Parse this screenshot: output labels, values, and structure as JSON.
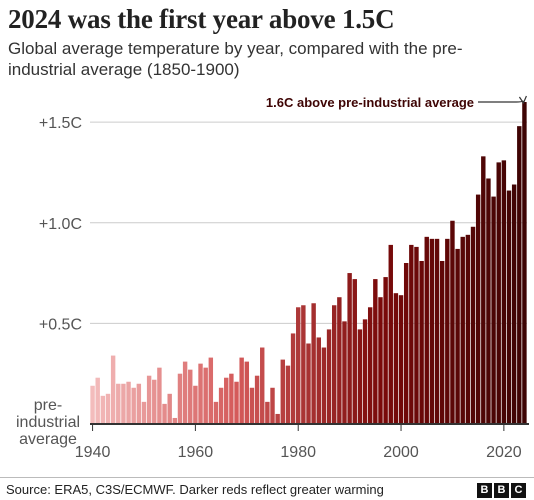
{
  "chart_data": {
    "type": "bar",
    "title": "2024 was the first year above 1.5C",
    "subtitle": "Global average temperature by year, compared with the pre-industrial average (1850-1900)",
    "xlabel": "",
    "ylabel": "",
    "x_ticks": [
      1940,
      1960,
      1980,
      2000,
      2020
    ],
    "y_ticks": [
      {
        "value": 0,
        "label": "pre-\nindustrial\naverage"
      },
      {
        "value": 0.5,
        "label": "+0.5C"
      },
      {
        "value": 1.0,
        "label": "+1.0C"
      },
      {
        "value": 1.5,
        "label": "+1.5C"
      }
    ],
    "ylim": [
      0,
      1.6
    ],
    "xlim": [
      1940,
      2024
    ],
    "grid": "horizontal",
    "categories": [
      1940,
      1941,
      1942,
      1943,
      1944,
      1945,
      1946,
      1947,
      1948,
      1949,
      1950,
      1951,
      1952,
      1953,
      1954,
      1955,
      1956,
      1957,
      1958,
      1959,
      1960,
      1961,
      1962,
      1963,
      1964,
      1965,
      1966,
      1967,
      1968,
      1969,
      1970,
      1971,
      1972,
      1973,
      1974,
      1975,
      1976,
      1977,
      1978,
      1979,
      1980,
      1981,
      1982,
      1983,
      1984,
      1985,
      1986,
      1987,
      1988,
      1989,
      1990,
      1991,
      1992,
      1993,
      1994,
      1995,
      1996,
      1997,
      1998,
      1999,
      2000,
      2001,
      2002,
      2003,
      2004,
      2005,
      2006,
      2007,
      2008,
      2009,
      2010,
      2011,
      2012,
      2013,
      2014,
      2015,
      2016,
      2017,
      2018,
      2019,
      2020,
      2021,
      2022,
      2023,
      2024
    ],
    "values": [
      0.19,
      0.23,
      0.14,
      0.15,
      0.34,
      0.2,
      0.2,
      0.21,
      0.18,
      0.2,
      0.11,
      0.24,
      0.22,
      0.28,
      0.1,
      0.15,
      0.03,
      0.25,
      0.31,
      0.27,
      0.19,
      0.3,
      0.28,
      0.33,
      0.11,
      0.18,
      0.23,
      0.25,
      0.21,
      0.33,
      0.31,
      0.18,
      0.24,
      0.38,
      0.11,
      0.18,
      0.05,
      0.32,
      0.29,
      0.45,
      0.58,
      0.59,
      0.4,
      0.6,
      0.43,
      0.38,
      0.47,
      0.59,
      0.63,
      0.51,
      0.75,
      0.72,
      0.47,
      0.52,
      0.58,
      0.72,
      0.63,
      0.73,
      0.89,
      0.65,
      0.64,
      0.8,
      0.89,
      0.88,
      0.81,
      0.93,
      0.92,
      0.92,
      0.81,
      0.92,
      1.01,
      0.87,
      0.93,
      0.94,
      0.98,
      1.14,
      1.33,
      1.22,
      1.13,
      1.3,
      1.31,
      1.16,
      1.19,
      1.48,
      1.6
    ],
    "annotation": "1.6C above pre-industrial average",
    "colors": {
      "light": "#f3bcbc",
      "mid": "#d45a5a",
      "dark": "#7a0a0a",
      "darkest": "#3e0404",
      "axis": "#333333",
      "grid": "#cccccc"
    }
  },
  "footer": {
    "source": "Source: ERA5, C3S/ECMWF. Darker reds reflect greater warming",
    "logo": [
      "B",
      "B",
      "C"
    ]
  }
}
